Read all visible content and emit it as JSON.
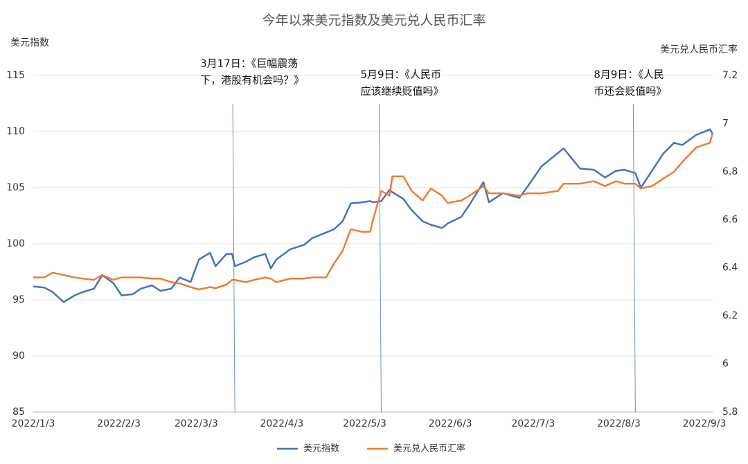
{
  "chart_data": {
    "type": "line",
    "title": "今年以来美元指数及美元兑人民币汇率",
    "y_label": "美元指数",
    "y2_label": "美元兑人民币汇率",
    "x": [
      "2022/1/3",
      "2022/1/7",
      "2022/1/10",
      "2022/1/14",
      "2022/1/18",
      "2022/1/21",
      "2022/1/25",
      "2022/1/28",
      "2022/2/1",
      "2022/2/4",
      "2022/2/8",
      "2022/2/11",
      "2022/2/15",
      "2022/2/18",
      "2022/2/22",
      "2022/2/25",
      "2022/3/1",
      "2022/3/4",
      "2022/3/8",
      "2022/3/10",
      "2022/3/14",
      "2022/3/16",
      "2022/3/17",
      "2022/3/21",
      "2022/3/24",
      "2022/3/28",
      "2022/3/30",
      "2022/4/1",
      "2022/4/6",
      "2022/4/11",
      "2022/4/14",
      "2022/4/19",
      "2022/4/22",
      "2022/4/25",
      "2022/4/28",
      "2022/5/2",
      "2022/5/5",
      "2022/5/6",
      "2022/5/9",
      "2022/5/12",
      "2022/5/13",
      "2022/5/17",
      "2022/5/20",
      "2022/5/24",
      "2022/5/27",
      "2022/5/31",
      "2022/6/2",
      "2022/6/7",
      "2022/6/10",
      "2022/6/15",
      "2022/6/17",
      "2022/6/22",
      "2022/6/28",
      "2022/7/1",
      "2022/7/6",
      "2022/7/12",
      "2022/7/14",
      "2022/7/20",
      "2022/7/25",
      "2022/7/29",
      "2022/8/2",
      "2022/8/5",
      "2022/8/9",
      "2022/8/11",
      "2022/8/15",
      "2022/8/19",
      "2022/8/23",
      "2022/8/26",
      "2022/8/31",
      "2022/9/5",
      "2022/9/6"
    ],
    "series": [
      {
        "name": "美元指数",
        "color": "#4472c4",
        "axis": "y",
        "values": [
          96.2,
          96.1,
          95.7,
          94.8,
          95.4,
          95.7,
          96.0,
          97.2,
          96.5,
          95.4,
          95.5,
          96.0,
          96.3,
          95.8,
          96.0,
          97.0,
          96.6,
          98.6,
          99.2,
          98.0,
          99.1,
          99.1,
          98.0,
          98.4,
          98.8,
          99.1,
          97.8,
          98.6,
          99.5,
          99.9,
          100.5,
          101.0,
          101.3,
          102.0,
          103.6,
          103.7,
          103.8,
          103.7,
          103.8,
          104.8,
          104.6,
          104.0,
          103.0,
          102.0,
          101.7,
          101.4,
          101.8,
          102.4,
          103.5,
          105.5,
          103.7,
          104.5,
          104.1,
          105.1,
          106.9,
          108.1,
          108.5,
          106.7,
          106.6,
          105.9,
          106.5,
          106.6,
          106.3,
          105.0,
          106.5,
          108.0,
          109.0,
          108.8,
          109.7,
          110.2,
          109.8
        ]
      },
      {
        "name": "美元兑人民币汇率",
        "color": "#ed7d31",
        "axis": "y2",
        "values": [
          6.36,
          6.36,
          6.38,
          6.37,
          6.36,
          6.355,
          6.35,
          6.37,
          6.35,
          6.36,
          6.36,
          6.36,
          6.355,
          6.355,
          6.34,
          6.335,
          6.32,
          6.31,
          6.32,
          6.315,
          6.33,
          6.35,
          6.35,
          6.34,
          6.35,
          6.36,
          6.355,
          6.34,
          6.355,
          6.355,
          6.36,
          6.36,
          6.42,
          6.47,
          6.56,
          6.55,
          6.55,
          6.6,
          6.72,
          6.7,
          6.78,
          6.78,
          6.72,
          6.68,
          6.73,
          6.7,
          6.67,
          6.68,
          6.7,
          6.74,
          6.71,
          6.71,
          6.7,
          6.71,
          6.71,
          6.72,
          6.75,
          6.75,
          6.76,
          6.74,
          6.76,
          6.75,
          6.75,
          6.73,
          6.74,
          6.77,
          6.8,
          6.84,
          6.9,
          6.92,
          6.96
        ]
      }
    ],
    "xlim": [
      "2022/1/3",
      "2022/9/6"
    ],
    "xticks": [
      "2022/1/3",
      "2022/2/3",
      "2022/3/3",
      "2022/4/3",
      "2022/5/3",
      "2022/6/3",
      "2022/7/3",
      "2022/8/3",
      "2022/9/3"
    ],
    "ylim": [
      85,
      115
    ],
    "yticks": [
      85,
      90,
      95,
      100,
      105,
      110,
      115
    ],
    "y2lim": [
      5.8,
      7.2
    ],
    "y2ticks": [
      5.8,
      6,
      6.2,
      6.4,
      6.6,
      6.8,
      7,
      7.2
    ],
    "grid": true,
    "legend": "bottom",
    "annotations": [
      {
        "x": "2022/3/17",
        "lines": [
          "3月17日：《巨幅震荡",
          "下，港股有机会吗？》"
        ]
      },
      {
        "x": "2022/5/9",
        "lines": [
          "5月9日：《人民币",
          "应该继续贬值吗》"
        ]
      },
      {
        "x": "2022/8/9",
        "lines": [
          "8月9日：《人民",
          "币还会贬值吗》"
        ]
      }
    ]
  }
}
